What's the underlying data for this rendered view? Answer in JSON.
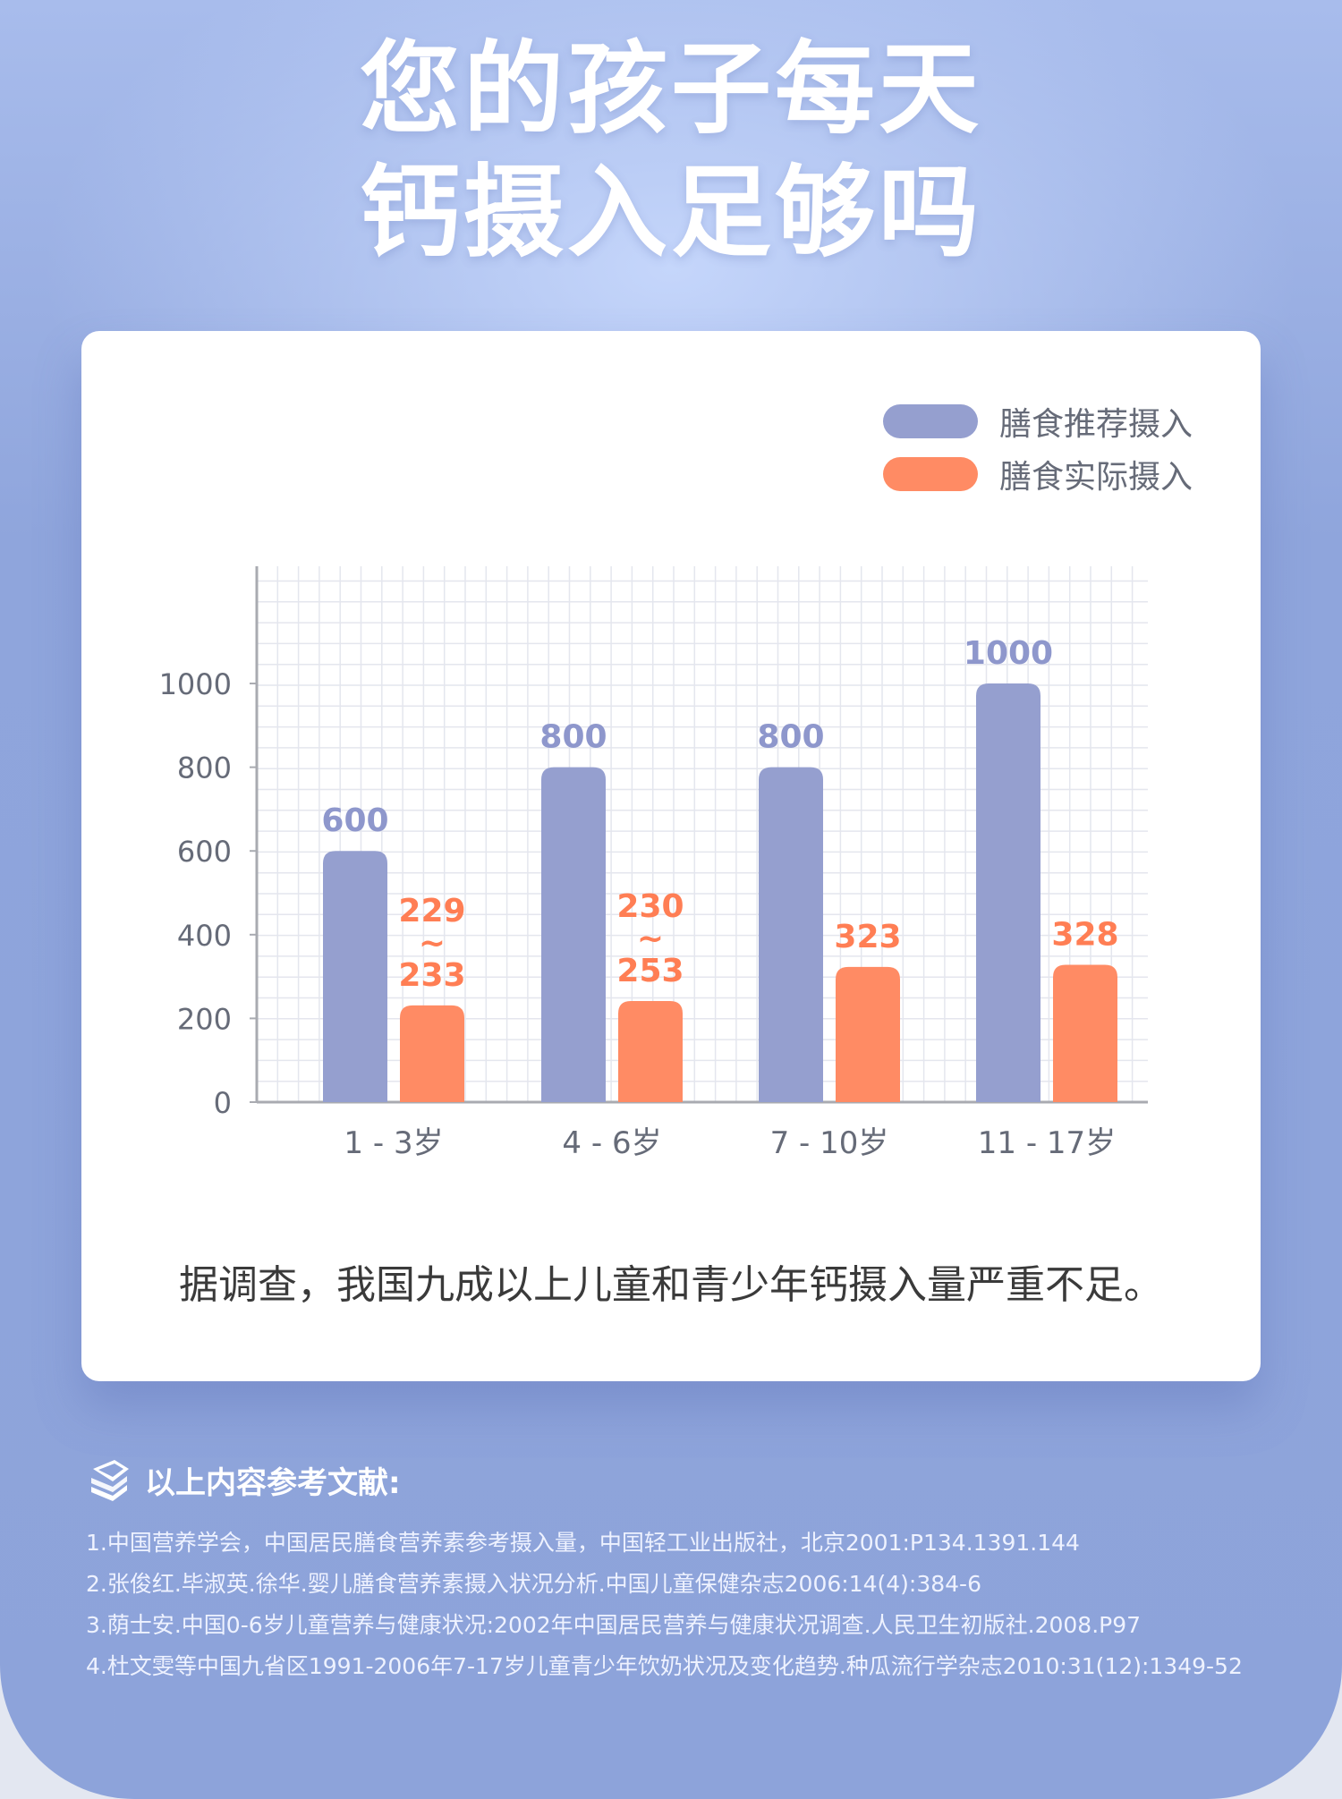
{
  "title": {
    "line1": "您的孩子每天",
    "line2": "钙摄入足够吗"
  },
  "legend": [
    {
      "label": "膳食推荐摄入",
      "color": "#959fcf"
    },
    {
      "label": "膳食实际摄入",
      "color": "#ff8b64"
    }
  ],
  "chart_data": {
    "type": "bar",
    "categories": [
      "1 - 3岁",
      "4 - 6岁",
      "7 - 10岁",
      "11 - 17岁"
    ],
    "series": [
      {
        "name": "膳食推荐摄入",
        "values": [
          600,
          800,
          800,
          1000
        ],
        "labels": [
          "600",
          "800",
          "800",
          "1000"
        ],
        "color": "#959fcf",
        "label_color": "#8e97cc"
      },
      {
        "name": "膳食实际摄入",
        "values": [
          231,
          241.5,
          323,
          328
        ],
        "labels": [
          [
            "229",
            "~",
            "233"
          ],
          [
            "230",
            "~",
            "253"
          ],
          [
            "323"
          ],
          [
            "328"
          ]
        ],
        "color": "#ff8b64",
        "label_color": "#ff7e54"
      }
    ],
    "y_ticks": [
      "0",
      "200",
      "400",
      "600",
      "800",
      "1000"
    ],
    "ylim": [
      0,
      1280
    ],
    "grid": true,
    "legend_position": "top-right"
  },
  "note": "据调查，我国九成以上儿童和青少年钙摄入量严重不足。",
  "references": {
    "heading": "以上内容参考文献:",
    "items": [
      "1.中国营养学会，中国居民膳食营养素参考摄入量，中国轻工业出版社，北京2001:P134.1391.144",
      "2.张俊红.毕淑英.徐华.婴儿膳食营养素摄入状况分析.中国儿童保健杂志2006:14(4):384-6",
      "3.荫士安.中国0-6岁儿童营养与健康状况:2002年中国居民营养与健康状况调查.人民卫生初版社.2008.P97",
      "4.杜文雯等中国九省区1991-2006年7-17岁儿童青少年饮奶状况及变化趋势.种瓜流行学杂志2010:31(12):1349-52"
    ]
  }
}
